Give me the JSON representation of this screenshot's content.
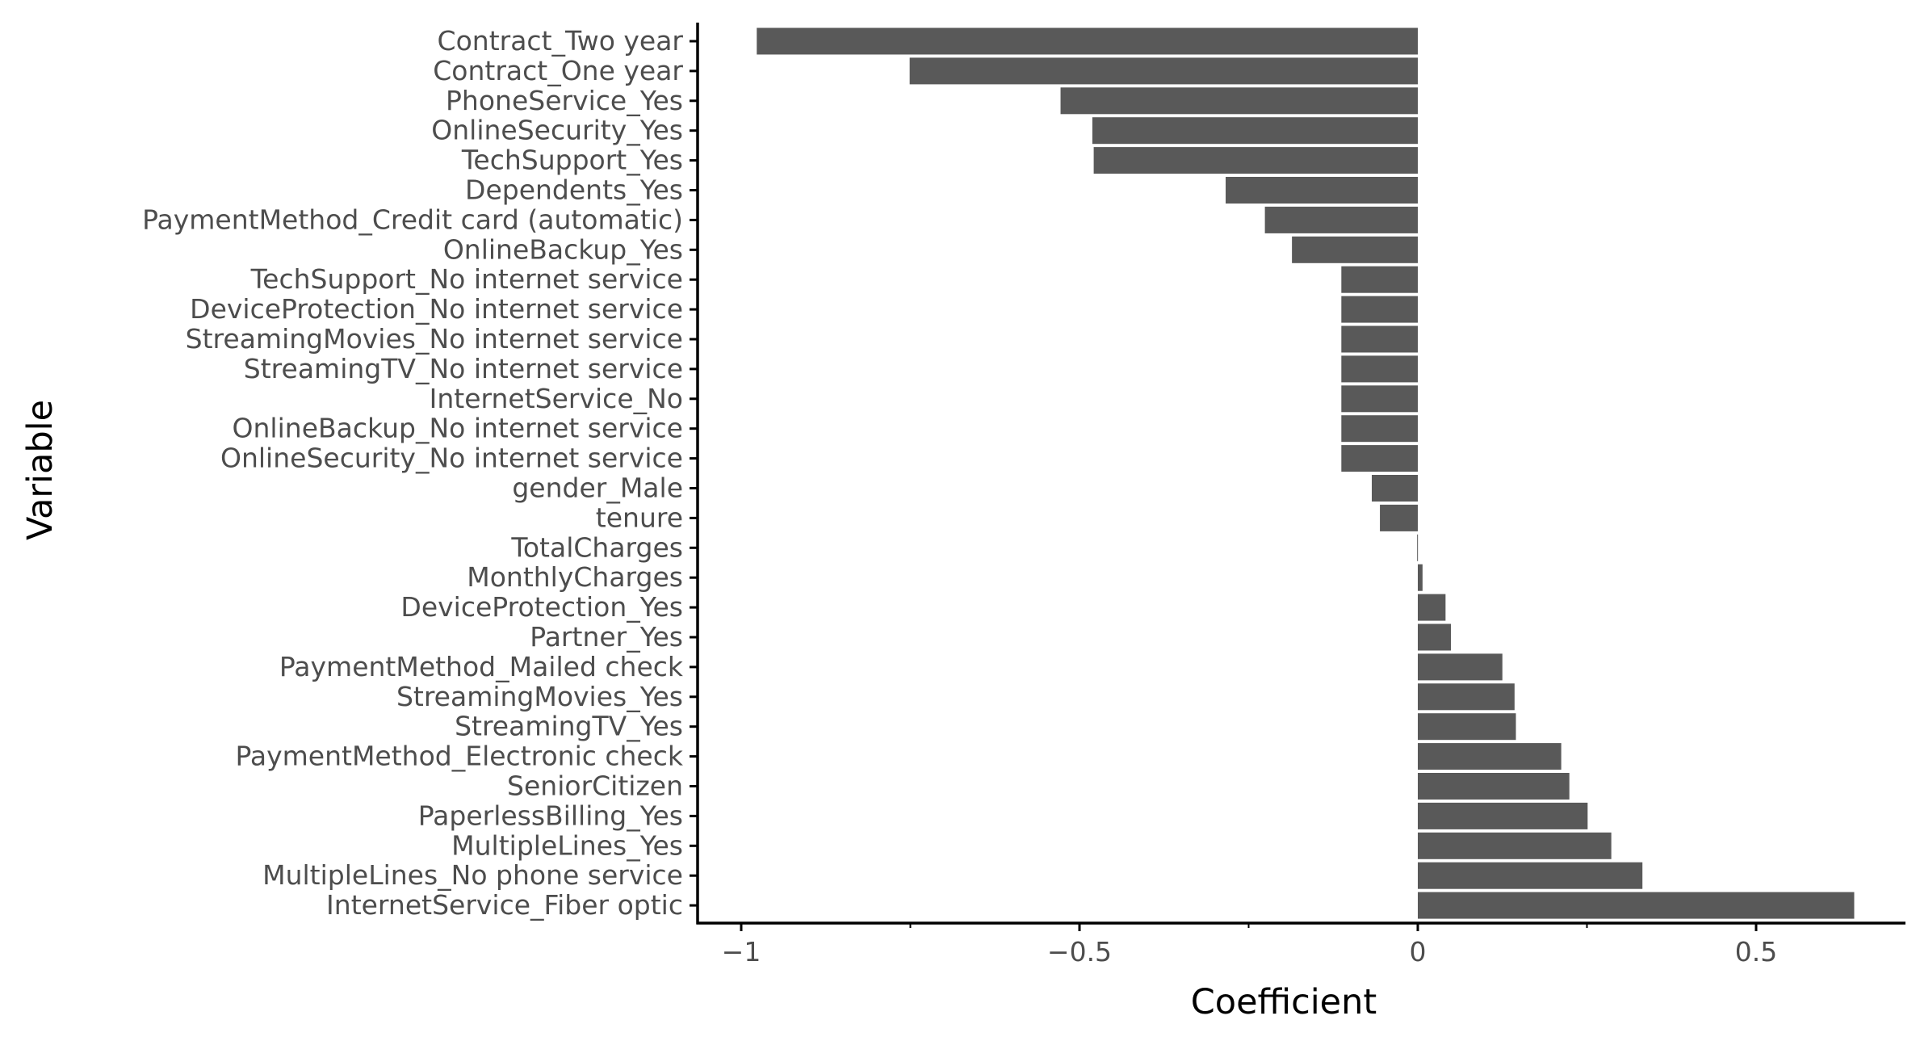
{
  "chart_data": {
    "type": "bar",
    "orientation": "horizontal",
    "xlabel": "Coefficient",
    "ylabel": "Variable",
    "xlim": [
      -1.06,
      0.72
    ],
    "x_ticks": [
      -1,
      -0.5,
      0,
      0.5
    ],
    "x_tick_labels": [
      "−1",
      "−0.5",
      "0",
      "0.5"
    ],
    "bar_color": "#595959",
    "grid": false,
    "categories": [
      "Contract_Two year",
      "Contract_One year",
      "PhoneService_Yes",
      "OnlineSecurity_Yes",
      "TechSupport_Yes",
      "Dependents_Yes",
      "PaymentMethod_Credit card (automatic)",
      "OnlineBackup_Yes",
      "TechSupport_No internet service",
      "DeviceProtection_No internet service",
      "StreamingMovies_No internet service",
      "StreamingTV_No internet service",
      "InternetService_No",
      "OnlineBackup_No internet service",
      "OnlineSecurity_No internet service",
      "gender_Male",
      "tenure",
      "TotalCharges",
      "MonthlyCharges",
      "DeviceProtection_Yes",
      "Partner_Yes",
      "PaymentMethod_Mailed check",
      "StreamingMovies_Yes",
      "StreamingTV_Yes",
      "PaymentMethod_Electronic check",
      "SeniorCitizen",
      "PaperlessBilling_Yes",
      "MultipleLines_Yes",
      "MultipleLines_No phone service",
      "InternetService_Fiber optic"
    ],
    "values": [
      -0.977,
      -0.751,
      -0.528,
      -0.481,
      -0.479,
      -0.284,
      -0.226,
      -0.186,
      -0.113,
      -0.113,
      -0.113,
      -0.113,
      -0.113,
      -0.113,
      -0.113,
      -0.068,
      -0.056,
      -0.001,
      0.007,
      0.041,
      0.049,
      0.125,
      0.143,
      0.145,
      0.212,
      0.224,
      0.251,
      0.286,
      0.332,
      0.645
    ]
  }
}
